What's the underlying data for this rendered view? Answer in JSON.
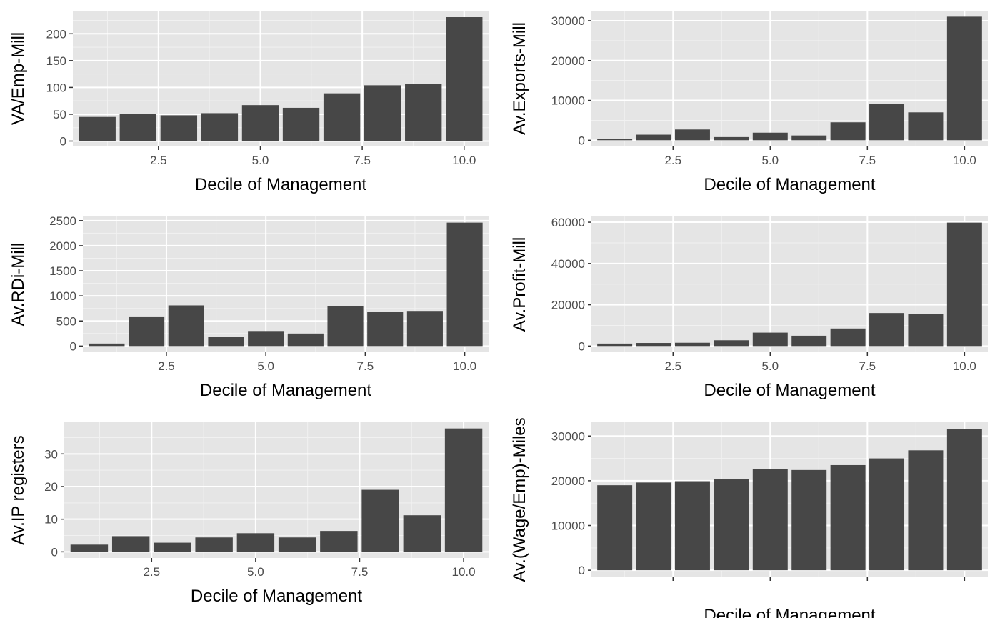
{
  "chart_data": [
    {
      "type": "bar",
      "xlabel": "Decile of Management",
      "ylabel": "VA/Emp-Mill",
      "x": [
        1,
        2,
        3,
        4,
        5,
        6,
        7,
        8,
        9,
        10
      ],
      "values": [
        45,
        51,
        48,
        52,
        67,
        62,
        89,
        104,
        107,
        231
      ],
      "xticks": [
        "2.5",
        "5.0",
        "7.5",
        "10.0"
      ],
      "yticks": [
        "0",
        "50",
        "100",
        "150",
        "200"
      ],
      "xlim": [
        0.4,
        10.6
      ],
      "ylim": [
        -10,
        243
      ],
      "grid": true
    },
    {
      "type": "bar",
      "xlabel": "Decile of Management",
      "ylabel": "Av.Exports-Mill",
      "x": [
        1,
        2,
        3,
        4,
        5,
        6,
        7,
        8,
        9,
        10
      ],
      "values": [
        300,
        1400,
        2700,
        800,
        1900,
        1200,
        4500,
        9100,
        7000,
        31000
      ],
      "xticks": [
        "2.5",
        "5.0",
        "7.5",
        "10.0"
      ],
      "yticks": [
        "0",
        "10000",
        "20000",
        "30000"
      ],
      "xlim": [
        0.4,
        10.6
      ],
      "ylim": [
        -1550,
        32500
      ],
      "grid": true
    },
    {
      "type": "bar",
      "xlabel": "Decile of Management",
      "ylabel": "Av.RDi-Mill",
      "x": [
        1,
        2,
        3,
        4,
        5,
        6,
        7,
        8,
        9,
        10
      ],
      "values": [
        50,
        590,
        810,
        180,
        300,
        250,
        800,
        680,
        700,
        2460
      ],
      "xticks": [
        "2.5",
        "5.0",
        "7.5",
        "10.0"
      ],
      "yticks": [
        "0",
        "500",
        "1000",
        "1500",
        "2000",
        "2500"
      ],
      "xlim": [
        0.4,
        10.6
      ],
      "ylim": [
        -123,
        2583
      ],
      "grid": true
    },
    {
      "type": "bar",
      "xlabel": "Decile of Management",
      "ylabel": "Av.Profit-Mill",
      "x": [
        1,
        2,
        3,
        4,
        5,
        6,
        7,
        8,
        9,
        10
      ],
      "values": [
        1200,
        1500,
        1600,
        2800,
        6500,
        5000,
        8500,
        16000,
        15500,
        59800
      ],
      "xticks": [
        "2.5",
        "5.0",
        "7.5",
        "10.0"
      ],
      "yticks": [
        "0",
        "20000",
        "40000",
        "60000"
      ],
      "xlim": [
        0.4,
        10.6
      ],
      "ylim": [
        -2990,
        62790
      ],
      "grid": true
    },
    {
      "type": "bar",
      "xlabel": "Decile of Management",
      "ylabel": "Av.IP registers",
      "x": [
        1,
        2,
        3,
        4,
        5,
        6,
        7,
        8,
        9,
        10
      ],
      "values": [
        2.2,
        4.8,
        2.8,
        4.4,
        5.7,
        4.4,
        6.4,
        19,
        11.2,
        37.8
      ],
      "xticks": [
        "2.5",
        "5.0",
        "7.5",
        "10.0"
      ],
      "yticks": [
        "0",
        "10",
        "20",
        "30"
      ],
      "xlim": [
        0.4,
        10.6
      ],
      "ylim": [
        -1.89,
        39.7
      ],
      "grid": true
    },
    {
      "type": "bar",
      "xlabel": "Decile of Management",
      "ylabel": "Av.(Wage/Emp)-Miles",
      "x": [
        1,
        2,
        3,
        4,
        5,
        6,
        7,
        8,
        9,
        10
      ],
      "values": [
        19000,
        19600,
        19900,
        20300,
        22600,
        22400,
        23500,
        25000,
        26800,
        31500
      ],
      "xticks": [
        "",
        "",
        "",
        ""
      ],
      "yticks": [
        "0",
        "10000",
        "20000",
        "30000"
      ],
      "xlim": [
        0.4,
        10.6
      ],
      "ylim": [
        -1575,
        33075
      ],
      "grid": true
    }
  ],
  "colors": {
    "panel_background": "#e5e5e5",
    "grid_major": "#ffffff",
    "grid_minor": "#f1f1f1",
    "bar_fill": "#474747",
    "tick_text": "#4d4d4d",
    "axis_title": "#000000",
    "tick_mark": "#333333"
  }
}
